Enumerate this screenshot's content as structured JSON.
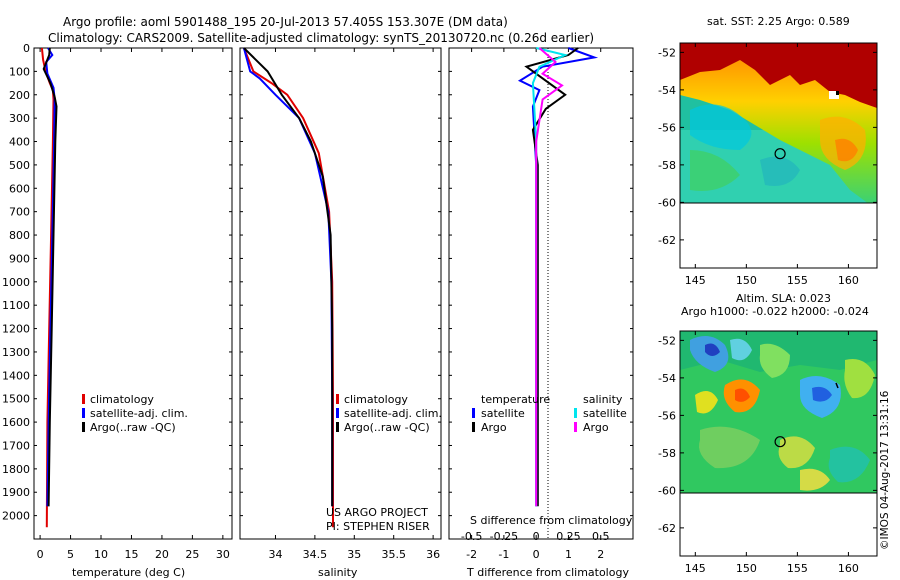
{
  "header": {
    "line1": "Argo profile: aoml 5901488_195 20-Jul-2013 57.405S 153.307E (DM data)",
    "line2": "Climatology: CARS2009. Satellite-adjusted climatology: synTS_20130720.nc (0.26d earlier)"
  },
  "credit": "©IMOS 04-Aug-2017 13:31:16",
  "chart_data": [
    {
      "type": "line",
      "id": "temperature",
      "xlabel": "temperature (deg C)",
      "ylabel": "",
      "xlim": [
        -1,
        31.5
      ],
      "ylim": [
        2100,
        0
      ],
      "xticks": [
        0,
        5,
        10,
        15,
        20,
        25,
        30
      ],
      "xtick_labels": [
        "0",
        "5",
        "10",
        "15",
        "20",
        "25",
        "30"
      ],
      "yticks": [
        0,
        100,
        200,
        300,
        400,
        500,
        600,
        700,
        800,
        900,
        1000,
        1100,
        1200,
        1300,
        1400,
        1500,
        1600,
        1700,
        1800,
        1900,
        2000
      ],
      "ytick_labels": [
        "0",
        "100",
        "200",
        "300",
        "400",
        "500",
        "600",
        "700",
        "800",
        "900",
        "1000",
        "1100",
        "1200",
        "1300",
        "1400",
        "1500",
        "1600",
        "1700",
        "1800",
        "1900",
        "2000"
      ],
      "legend": [
        "climatology",
        "satellite-adj. clim.",
        "Argo(..raw -QC)"
      ],
      "legend_colors": [
        "#e00000",
        "#0000ff",
        "#000000"
      ],
      "series": [
        {
          "name": "climatology",
          "color": "#e00000",
          "x": [
            0.3,
            0.5,
            0.9,
            1.6,
            2.1,
            2.2,
            2.1,
            1.8,
            1.5,
            1.2,
            1.1
          ],
          "y": [
            0,
            50,
            100,
            150,
            180,
            220,
            400,
            800,
            1200,
            1600,
            2050
          ]
        },
        {
          "name": "satellite-adj. clim.",
          "color": "#0000ff",
          "x": [
            1.3,
            2.0,
            1.0,
            1.2,
            2.2,
            2.4,
            2.3,
            2.0,
            1.7,
            1.4,
            1.2
          ],
          "y": [
            0,
            30,
            60,
            110,
            170,
            220,
            400,
            800,
            1200,
            1600,
            1960
          ]
        },
        {
          "name": "Argo(..raw -QC)",
          "color": "#000000",
          "x": [
            1.6,
            1.5,
            0.6,
            1.7,
            2.4,
            2.7,
            2.5,
            2.2,
            1.9,
            1.6,
            1.4
          ],
          "y": [
            0,
            30,
            90,
            150,
            210,
            250,
            400,
            800,
            1200,
            1600,
            1960
          ]
        }
      ]
    },
    {
      "type": "line",
      "id": "salinity",
      "xlabel": "salinity",
      "xlim": [
        33.55,
        36.1
      ],
      "ylim": [
        2100,
        0
      ],
      "xticks": [
        34,
        34.5,
        35,
        35.5,
        36
      ],
      "xtick_labels": [
        "34",
        "34.5",
        "35",
        "35.5",
        "36"
      ],
      "legend": [
        "climatology",
        "satellite-adj. clim.",
        "Argo(..raw -QC)"
      ],
      "legend_colors": [
        "#e00000",
        "#0000ff",
        "#000000"
      ],
      "annotation": [
        "US ARGO PROJECT",
        "PI: STEPHEN RISER"
      ],
      "series": [
        {
          "name": "climatology",
          "color": "#e00000",
          "x": [
            33.6,
            33.72,
            33.95,
            34.15,
            34.35,
            34.55,
            34.68,
            34.72,
            34.73,
            34.73
          ],
          "y": [
            0,
            100,
            150,
            200,
            300,
            450,
            700,
            1000,
            1500,
            2050
          ]
        },
        {
          "name": "satellite-adj. clim.",
          "color": "#0000ff",
          "x": [
            33.6,
            33.68,
            33.8,
            34.0,
            34.3,
            34.5,
            34.67,
            34.71,
            34.72,
            34.72
          ],
          "y": [
            0,
            100,
            130,
            200,
            300,
            450,
            700,
            1000,
            1500,
            1960
          ]
        },
        {
          "name": "Argo(..raw -QC)",
          "color": "#000000",
          "x": [
            33.6,
            33.9,
            34.08,
            34.3,
            34.45,
            34.6,
            34.7,
            34.72,
            34.72
          ],
          "y": [
            0,
            100,
            200,
            300,
            400,
            550,
            800,
            1200,
            1960
          ]
        }
      ]
    },
    {
      "type": "line",
      "id": "differences",
      "xlabel": "T difference from climatology",
      "xlabel_top": "S difference from climatology",
      "xlim": [
        -2.7,
        3.0
      ],
      "ylim": [
        2100,
        0
      ],
      "xticks": [
        -2,
        -1,
        0,
        1,
        2
      ],
      "xtick_labels": [
        "-2",
        "-1",
        "0",
        "1",
        "2"
      ],
      "s_ticks": [
        -0.5,
        -0.25,
        0,
        0.25,
        0.5
      ],
      "s_tick_labels": [
        "-0.5",
        "-0.25",
        "0",
        "0.25",
        "0.5"
      ],
      "legend_group_titles": [
        "temperature",
        "salinity"
      ],
      "legend": [
        "satellite",
        "Argo",
        "satellite",
        "Argo"
      ],
      "legend_colors": [
        "#0000ff",
        "#000000",
        "#00e5ee",
        "#ff00ff"
      ],
      "series": [
        {
          "name": "temperature satellite",
          "color": "#0000ff",
          "x": [
            1.0,
            1.8,
            0.2,
            -0.5,
            0.1,
            -0.1,
            0.0,
            0.0
          ],
          "y": [
            0,
            40,
            80,
            140,
            180,
            250,
            500,
            1960
          ]
        },
        {
          "name": "temperature Argo",
          "color": "#000000",
          "x": [
            1.3,
            1.0,
            -0.3,
            0.1,
            0.9,
            0.3,
            -0.1,
            0.05,
            0.05
          ],
          "y": [
            0,
            30,
            80,
            120,
            200,
            260,
            350,
            500,
            1960
          ]
        },
        {
          "name": "salinity satellite",
          "color": "#00e5ee",
          "x": [
            0.0,
            0.9,
            0.1,
            -0.1,
            0.0,
            0.0
          ],
          "y": [
            0,
            30,
            80,
            150,
            400,
            1960
          ]
        },
        {
          "name": "salinity Argo",
          "color": "#ff00ff",
          "x": [
            0.1,
            0.6,
            0.2,
            0.8,
            0.2,
            0.0,
            0.0
          ],
          "y": [
            0,
            60,
            110,
            160,
            220,
            400,
            1960
          ]
        }
      ]
    },
    {
      "type": "heatmap",
      "id": "sst-map",
      "title": "sat. SST: 2.25 Argo: 0.589",
      "xlim": [
        143.5,
        162.8
      ],
      "ylim": [
        -63.5,
        -51.5
      ],
      "xticks": [
        145,
        150,
        155,
        160
      ],
      "xtick_labels": [
        "145",
        "150",
        "155",
        "160"
      ],
      "yticks": [
        -52,
        -54,
        -56,
        -58,
        -60,
        -62
      ],
      "ytick_labels": [
        "-52",
        "-54",
        "-56",
        "-58",
        "-60",
        "-62"
      ],
      "profile_lon": 153.307,
      "profile_lat": -57.405
    },
    {
      "type": "heatmap",
      "id": "sla-map",
      "title": "Altim. SLA: 0.023",
      "subtitle": "Argo h1000: -0.022 h2000: -0.024",
      "xlim": [
        143.5,
        162.8
      ],
      "ylim": [
        -63.5,
        -51.5
      ],
      "xticks": [
        145,
        150,
        155,
        160
      ],
      "xtick_labels": [
        "145",
        "150",
        "155",
        "160"
      ],
      "yticks": [
        -52,
        -54,
        -56,
        -58,
        -60,
        -62
      ],
      "ytick_labels": [
        "-52",
        "-54",
        "-56",
        "-58",
        "-60",
        "-62"
      ],
      "profile_lon": 153.307,
      "profile_lat": -57.405
    }
  ]
}
